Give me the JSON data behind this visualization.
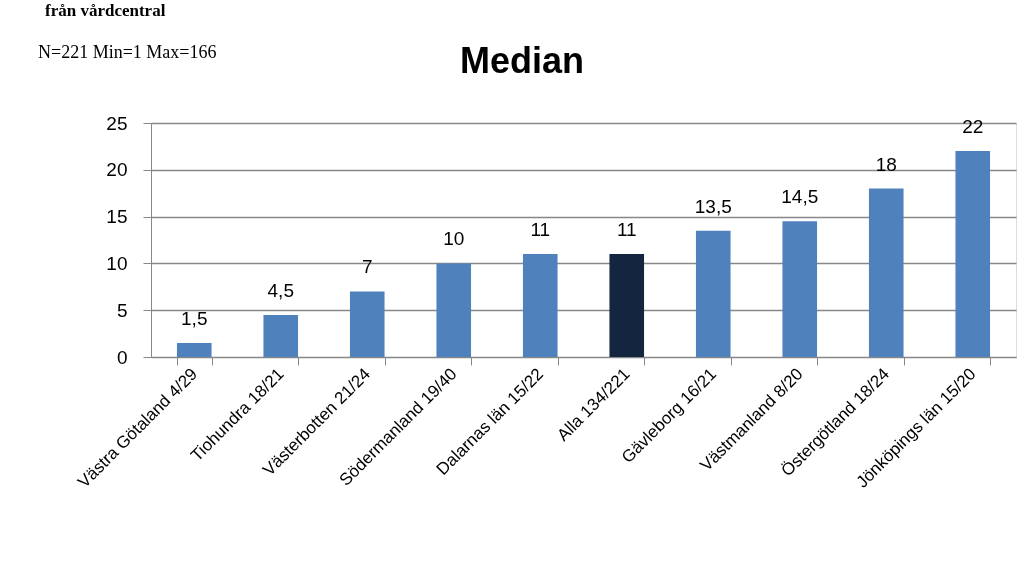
{
  "chart_data": {
    "type": "bar",
    "title": "Median",
    "annotations": [
      "från vårdcentral",
      "N=221 Min=1 Max=166"
    ],
    "categories": [
      "Västra Götaland 4/29",
      "Tiohundra 18/21",
      "Västerbotten 21/24",
      "Södermanland 19/40",
      "Dalarnas län 15/22",
      "Alla 134/221",
      "Gävleborg 16/21",
      "Västmanland 8/20",
      "Östergötland 18/24",
      "Jönköpings län 15/20"
    ],
    "values": [
      1.5,
      4.5,
      7,
      10,
      11,
      11,
      13.5,
      14.5,
      18,
      22
    ],
    "value_labels": [
      "1,5",
      "4,5",
      "7",
      "10",
      "11",
      "11",
      "13,5",
      "14,5",
      "18",
      "22"
    ],
    "colors": [
      "#4f81bd",
      "#4f81bd",
      "#4f81bd",
      "#4f81bd",
      "#4f81bd",
      "#13253f",
      "#4f81bd",
      "#4f81bd",
      "#4f81bd",
      "#4f81bd"
    ],
    "ylim": [
      0,
      25
    ],
    "yticks": [
      0,
      5,
      10,
      15,
      20,
      25
    ],
    "grid": "y"
  }
}
